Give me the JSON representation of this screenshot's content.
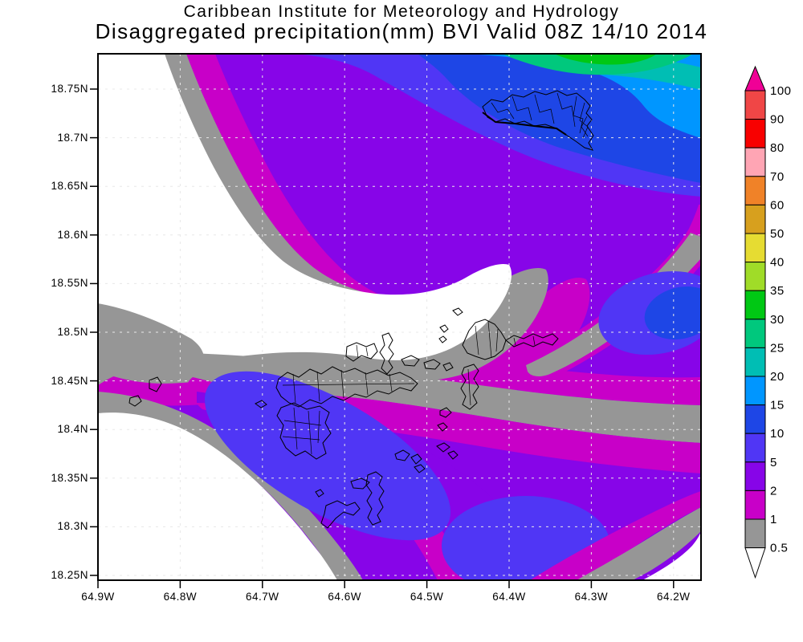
{
  "header": {
    "line1": "Caribbean Institute for Meteorology and Hydrology",
    "line2": "Disaggregated precipitation(mm) BVI Valid 08Z 14/10 2014"
  },
  "axes": {
    "lat_ticks": [
      "18.75N",
      "18.7N",
      "18.65N",
      "18.6N",
      "18.55N",
      "18.5N",
      "18.45N",
      "18.4N",
      "18.35N",
      "18.3N",
      "18.25N"
    ],
    "lon_ticks": [
      "64.9W",
      "64.8W",
      "64.7W",
      "64.6W",
      "64.5W",
      "64.4W",
      "64.3W",
      "64.2W"
    ]
  },
  "colorbar": {
    "labels": [
      "100",
      "90",
      "80",
      "70",
      "60",
      "50",
      "40",
      "35",
      "30",
      "25",
      "20",
      "15",
      "10",
      "5",
      "2",
      "1",
      "0.5"
    ],
    "segment_colors_top_to_bottom": [
      "#F04646",
      "#F80000",
      "#FFA5B4",
      "#F08228",
      "#D7A01E",
      "#E6DC32",
      "#A0DC28",
      "#00C814",
      "#00C87D",
      "#00BEB4",
      "#0096FF",
      "#1E46E6",
      "#5036F5",
      "#8705E8",
      "#C800C8",
      "#969696"
    ],
    "top_arrow_color": "#F00096",
    "bottom_arrow_color": "#FFFFFF"
  },
  "palette": {
    "white": "#FFFFFF",
    "gray": "#969696",
    "magenta": "#C800C8",
    "purple": "#8705E8",
    "violet": "#5036F5",
    "royal": "#1E46E6",
    "sky": "#0096FF",
    "teal": "#00BEB4",
    "emerald": "#00C87D",
    "green": "#00C814",
    "frame": "#000000",
    "grid": "#E8E8E8"
  },
  "map_meta": {
    "value_units": "mm",
    "lat_range": [
      "18.25N",
      "18.75N"
    ],
    "lon_range": [
      "64.9W",
      "64.2W"
    ],
    "contour_levels": [
      0.5,
      1,
      2,
      5,
      10,
      15,
      20,
      25,
      30,
      35,
      40,
      50,
      60,
      70,
      80,
      90,
      100
    ]
  }
}
